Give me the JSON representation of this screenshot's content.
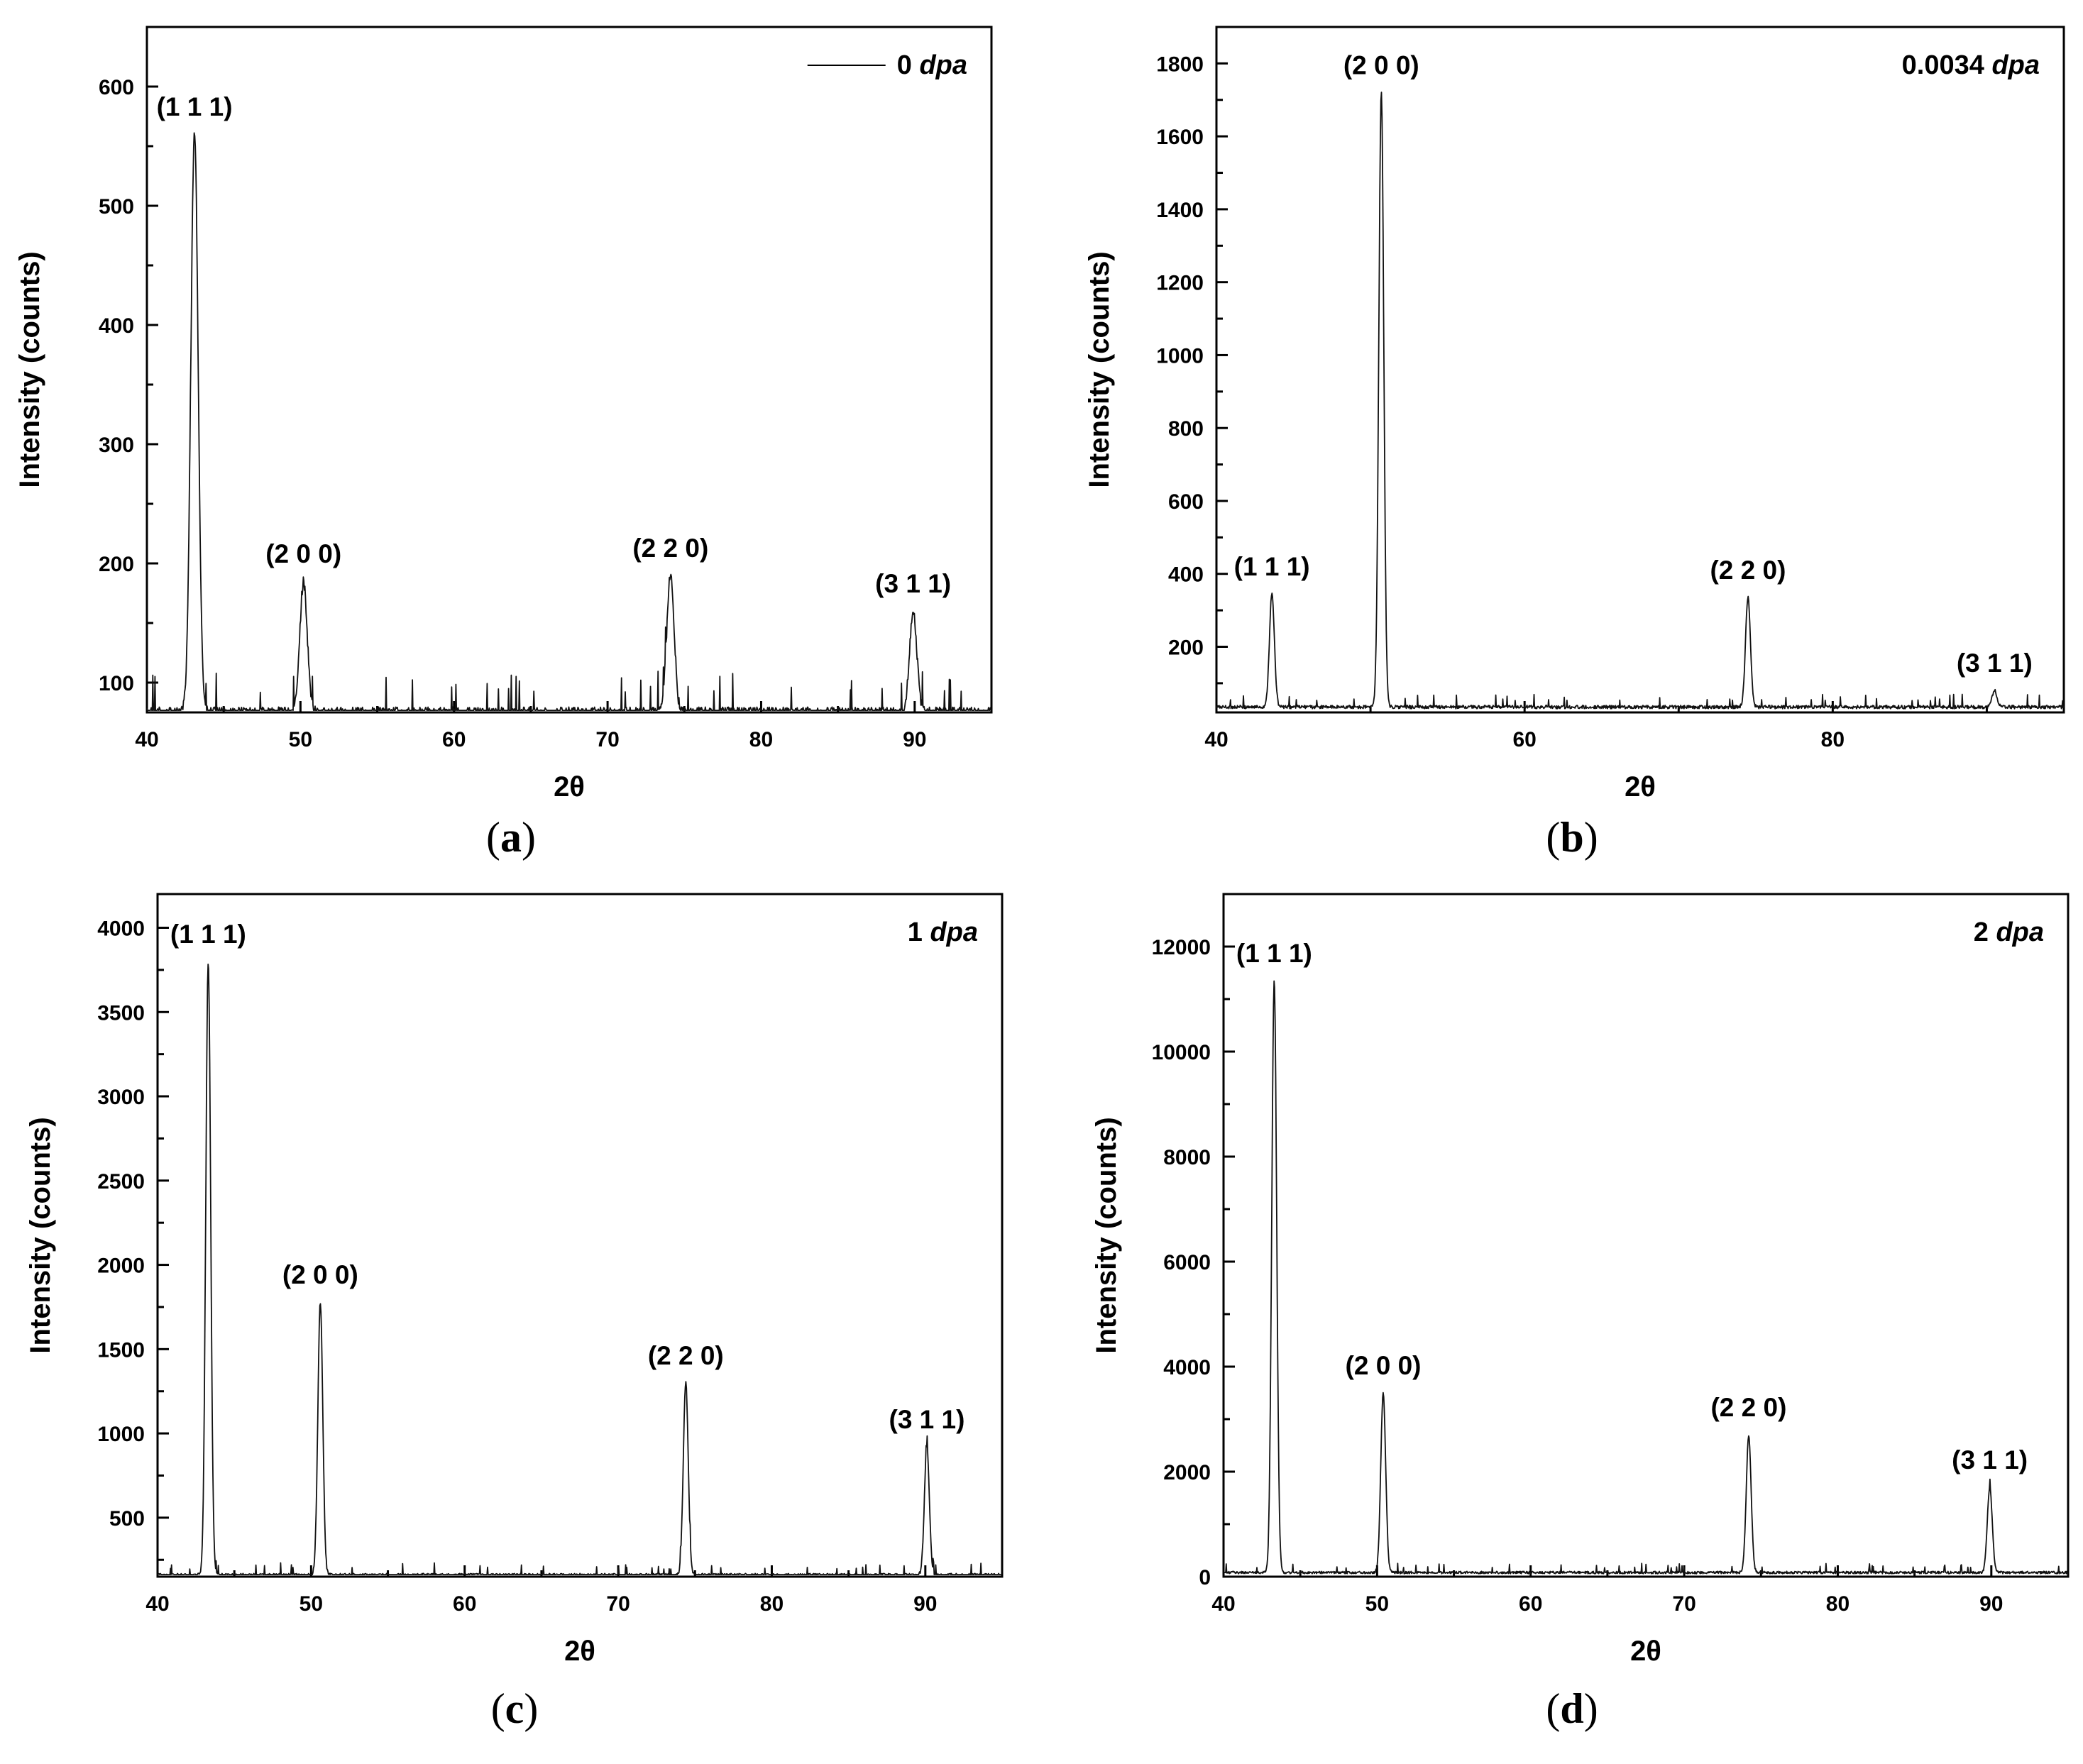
{
  "figure": {
    "panels": [
      {
        "caption_open": "(",
        "caption_letter": "a",
        "caption_close": ")",
        "dose_value": "0",
        "dose_unit": "dpa",
        "legend_style": "line"
      },
      {
        "caption_open": "(",
        "caption_letter": "b",
        "caption_close": ")",
        "dose_value": "0.0034",
        "dose_unit": "dpa",
        "legend_style": "text"
      },
      {
        "caption_open": "(",
        "caption_letter": "c",
        "caption_close": ")",
        "dose_value": "1",
        "dose_unit": "dpa",
        "legend_style": "text"
      },
      {
        "caption_open": "(",
        "caption_letter": "d",
        "caption_close": ")",
        "dose_value": "2",
        "dose_unit": "dpa",
        "legend_style": "text"
      }
    ]
  },
  "chart_data": [
    {
      "type": "line",
      "xlabel": "2θ",
      "ylabel": "Intensity (counts)",
      "xlim": [
        40,
        95
      ],
      "ylim": [
        75,
        650
      ],
      "xticks": [
        40,
        50,
        60,
        70,
        80,
        90
      ],
      "yticks": [
        100,
        200,
        300,
        400,
        500,
        600
      ],
      "baseline": 75,
      "noise": 12,
      "peaks": [
        {
          "x": 43.1,
          "y": 560,
          "label": "(1 1 1)"
        },
        {
          "x": 50.2,
          "y": 185,
          "label": "(2 0 0)"
        },
        {
          "x": 74.1,
          "y": 190,
          "label": "(2 2 0)"
        },
        {
          "x": 89.9,
          "y": 160,
          "label": "(3 1 1)"
        }
      ],
      "legend": {
        "entries": [
          "0 dpa"
        ],
        "position": "top-right"
      }
    },
    {
      "type": "line",
      "xlabel": "2θ",
      "ylabel": "Intensity (counts)",
      "xlim": [
        40,
        95
      ],
      "ylim": [
        20,
        1900
      ],
      "xticks": [
        40,
        60,
        80
      ],
      "yticks": [
        200,
        400,
        600,
        800,
        1000,
        1200,
        1400,
        1600,
        1800
      ],
      "baseline": 35,
      "noise": 12,
      "peaks": [
        {
          "x": 43.6,
          "y": 345,
          "label": "(1 1 1)"
        },
        {
          "x": 50.7,
          "y": 1720,
          "label": "(2 0 0)"
        },
        {
          "x": 74.5,
          "y": 335,
          "label": "(2 2 0)"
        },
        {
          "x": 90.5,
          "y": 80,
          "label": "(3 1 1)"
        }
      ],
      "legend": {
        "entries": [
          "0.0034 dpa"
        ],
        "position": "top-right"
      }
    },
    {
      "type": "line",
      "xlabel": "2θ",
      "ylabel": "Intensity (counts)",
      "xlim": [
        40,
        95
      ],
      "ylim": [
        150,
        4200
      ],
      "xticks": [
        40,
        50,
        60,
        70,
        80,
        90
      ],
      "yticks": [
        500,
        1000,
        1500,
        2000,
        2500,
        3000,
        3500,
        4000
      ],
      "baseline": 160,
      "noise": 25,
      "peaks": [
        {
          "x": 43.3,
          "y": 3800,
          "label": "(1 1 1)"
        },
        {
          "x": 50.6,
          "y": 1780,
          "label": "(2 0 0)"
        },
        {
          "x": 74.4,
          "y": 1300,
          "label": "(2 2 0)"
        },
        {
          "x": 90.1,
          "y": 920,
          "label": "(3 1 1)"
        }
      ],
      "legend": {
        "entries": [
          "1 dpa"
        ],
        "position": "top-right"
      }
    },
    {
      "type": "line",
      "xlabel": "2θ",
      "ylabel": "Intensity (counts)",
      "xlim": [
        40,
        95
      ],
      "ylim": [
        0,
        13000
      ],
      "xticks": [
        40,
        50,
        60,
        70,
        80,
        90
      ],
      "yticks": [
        0,
        2000,
        4000,
        6000,
        8000,
        10000,
        12000
      ],
      "baseline": 80,
      "noise": 60,
      "peaks": [
        {
          "x": 43.3,
          "y": 11350,
          "label": "(1 1 1)"
        },
        {
          "x": 50.4,
          "y": 3500,
          "label": "(2 0 0)"
        },
        {
          "x": 74.2,
          "y": 2700,
          "label": "(2 2 0)"
        },
        {
          "x": 89.9,
          "y": 1700,
          "label": "(3 1 1)"
        }
      ],
      "legend": {
        "entries": [
          "2 dpa"
        ],
        "position": "top-right"
      }
    }
  ]
}
